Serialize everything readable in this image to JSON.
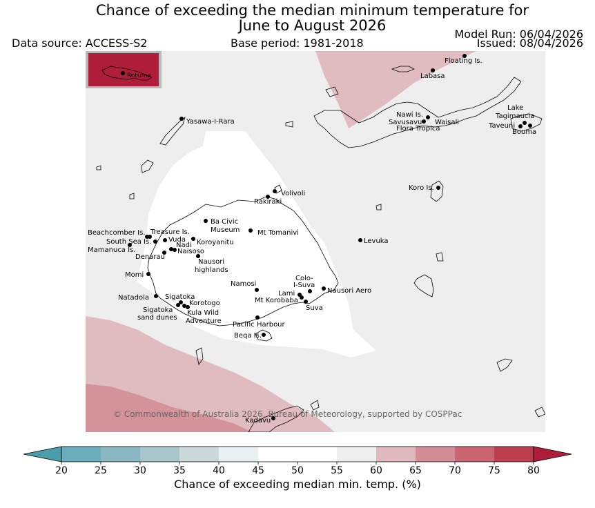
{
  "title_line1": "Chance of exceeding the median minimum temperature for",
  "title_line2": "June to August 2026",
  "data_source": "Data source: ACCESS-S2",
  "base_period": "Base period: 1981-2018",
  "model_run": "Model Run: 06/04/2026",
  "issued": "Issued: 08/04/2026",
  "copyright": "© Commonwealth of Australia 2026, Bureau of Meteorology, supported by COSPPac",
  "inset_label": "Rotuma",
  "colorbar": {
    "label": "Chance of exceeding median min. temp. (%)",
    "ticks": [
      "20",
      "25",
      "30",
      "35",
      "40",
      "45",
      "50",
      "55",
      "60",
      "65",
      "70",
      "75",
      "80"
    ],
    "colors": [
      "#4a9dab",
      "#6aadbb",
      "#8ab8c2",
      "#a8c7cc",
      "#ccd8da",
      "#e9f0f2",
      "#ffffff",
      "#ffffff",
      "#eeeeee",
      "#e0b9bf",
      "#d48d96",
      "#c96470",
      "#bd3f4f",
      "#ae1e3a"
    ]
  },
  "regions": {
    "background_category": "55-60",
    "land_center": "45-55",
    "northeast_band": "60-65",
    "southwest_outer": "60-65",
    "southwest_inner": "65-70",
    "rotuma": "75-80"
  },
  "places": [
    {
      "name": "Floating Is."
    },
    {
      "name": "Labasa"
    },
    {
      "name": "Nawi Is."
    },
    {
      "name": "Savusavu"
    },
    {
      "name": "Waisali"
    },
    {
      "name": "Flora Tropica"
    },
    {
      "name": "Lake"
    },
    {
      "name": "Tagimaucia"
    },
    {
      "name": "Taveuni"
    },
    {
      "name": "Bouma"
    },
    {
      "name": "Yasawa-I-Rara"
    },
    {
      "name": "Volivoli"
    },
    {
      "name": "Rakiraki"
    },
    {
      "name": "Koro Is."
    },
    {
      "name": "Ba Civic"
    },
    {
      "name": "Museum"
    },
    {
      "name": "Mt Tomanivi"
    },
    {
      "name": "Beachcomber Is."
    },
    {
      "name": "Treasure Is."
    },
    {
      "name": "South Sea Is."
    },
    {
      "name": "Vuda"
    },
    {
      "name": "Koroyanitu"
    },
    {
      "name": "Nadi"
    },
    {
      "name": "Mamanuca Is."
    },
    {
      "name": "Naisoso"
    },
    {
      "name": "Denarau"
    },
    {
      "name": "Nausori"
    },
    {
      "name": "highlands"
    },
    {
      "name": "Levuka"
    },
    {
      "name": "Momi"
    },
    {
      "name": "Colo-"
    },
    {
      "name": "I-Suva"
    },
    {
      "name": "Namosi"
    },
    {
      "name": "Nausori Aero"
    },
    {
      "name": "Lami"
    },
    {
      "name": "Natadola"
    },
    {
      "name": "Sigatoka"
    },
    {
      "name": "Mt Korobaba"
    },
    {
      "name": "Korotogo"
    },
    {
      "name": "Suva"
    },
    {
      "name": "Sigatoka"
    },
    {
      "name": "sand dunes"
    },
    {
      "name": "Kula Wild"
    },
    {
      "name": "Adventure"
    },
    {
      "name": "Pacific Harbour"
    },
    {
      "name": "Beqa Is."
    },
    {
      "name": "Kadavu"
    }
  ]
}
